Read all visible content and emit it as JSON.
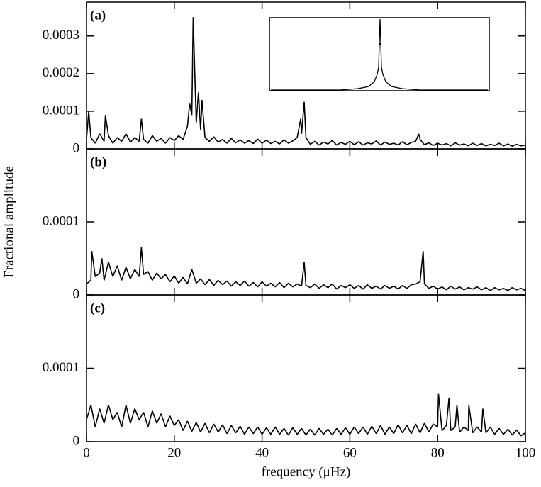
{
  "chart_data": [
    {
      "type": "line",
      "label": "(a)",
      "color": "#000000",
      "xlim": [
        0,
        100
      ],
      "ylim": [
        0,
        0.00039
      ],
      "yticks": [
        0,
        0.0001,
        0.0002,
        0.0003
      ],
      "x": [
        0,
        0.5,
        1,
        2,
        3,
        4,
        4.3,
        5,
        6,
        7,
        8,
        9,
        10,
        11,
        12,
        12.5,
        13,
        14,
        15,
        16,
        17,
        18,
        19,
        20,
        21,
        22,
        23,
        23.5,
        24,
        24.3,
        25,
        25.5,
        26,
        26.3,
        27,
        28,
        29,
        30,
        31,
        32,
        33,
        34,
        35,
        36,
        37,
        38,
        39,
        40,
        41,
        42,
        43,
        44,
        45,
        46,
        47,
        48,
        48.8,
        49,
        49.6,
        50,
        51,
        52,
        53,
        54,
        55,
        56,
        57,
        58,
        59,
        60,
        61,
        62,
        63,
        64,
        65,
        66,
        67,
        68,
        69,
        70,
        71,
        72,
        73,
        74,
        75,
        75.7,
        76,
        77,
        78,
        79,
        80,
        81,
        82,
        83,
        84,
        85,
        86,
        87,
        88,
        89,
        90,
        91,
        92,
        93,
        94,
        95,
        96,
        97,
        98,
        99,
        100
      ],
      "values": [
        2.5e-05,
        0.0001,
        3e-05,
        1.5e-05,
        4e-05,
        2e-05,
        9e-05,
        3.5e-05,
        1.5e-05,
        3e-05,
        2e-05,
        4e-05,
        1.8e-05,
        3e-05,
        2e-05,
        8e-05,
        2.5e-05,
        1.5e-05,
        3.5e-05,
        2e-05,
        2.8e-05,
        1.5e-05,
        3e-05,
        2.2e-05,
        3.5e-05,
        2.5e-05,
        6e-05,
        0.00012,
        9e-05,
        0.00035,
        7e-05,
        0.00015,
        5e-05,
        0.00013,
        3e-05,
        2e-05,
        3.2e-05,
        1.8e-05,
        2.5e-05,
        1.5e-05,
        2.8e-05,
        1.6e-05,
        2.4e-05,
        1.5e-05,
        2.2e-05,
        1.4e-05,
        2.6e-05,
        1.5e-05,
        2.3e-05,
        1.4e-05,
        2e-05,
        1.3e-05,
        2.4e-05,
        1.5e-05,
        2.1e-05,
        3e-05,
        8e-05,
        4e-05,
        0.000125,
        3e-05,
        1.2e-05,
        2e-05,
        1e-05,
        1.8e-05,
        1.3e-05,
        2.2e-05,
        1e-05,
        1.7e-05,
        1.2e-05,
        2e-05,
        1.1e-05,
        1.9e-05,
        1e-05,
        1.6e-05,
        1.3e-05,
        2.1e-05,
        1e-05,
        1.8e-05,
        1.2e-05,
        1.5e-05,
        1e-05,
        1.9e-05,
        1.1e-05,
        1.7e-05,
        2e-05,
        4e-05,
        2.5e-05,
        1.1e-05,
        1.6e-05,
        9e-06,
        1.5e-05,
        1e-05,
        1.4e-05,
        8e-06,
        1.6e-05,
        1e-05,
        1.3e-05,
        8e-06,
        1.5e-05,
        9e-06,
        1.4e-05,
        8e-06,
        1.2e-05,
        9e-06,
        1.5e-05,
        8e-06,
        1.3e-05,
        7e-06,
        1.2e-05,
        8e-06,
        1e-05
      ]
    },
    {
      "type": "line",
      "label": "(b)",
      "color": "#000000",
      "ylabel": "Fractional amplitude",
      "xlim": [
        0,
        100
      ],
      "ylim": [
        0,
        0.0002
      ],
      "yticks": [
        0,
        0.0001
      ],
      "x": [
        0,
        1,
        1.2,
        2,
        3,
        3.5,
        4,
        5,
        6,
        7,
        8,
        9,
        10,
        11,
        12,
        12.5,
        13,
        14,
        15,
        16,
        17,
        18,
        19,
        20,
        21,
        22,
        23,
        24,
        25,
        26,
        27,
        28,
        29,
        30,
        31,
        32,
        33,
        34,
        35,
        36,
        37,
        38,
        39,
        40,
        41,
        42,
        43,
        44,
        45,
        46,
        47,
        48,
        49,
        49.6,
        50,
        51,
        52,
        53,
        54,
        55,
        56,
        57,
        58,
        59,
        60,
        61,
        62,
        63,
        64,
        65,
        66,
        67,
        68,
        69,
        70,
        71,
        72,
        73,
        74,
        75,
        76,
        76.7,
        77,
        78,
        79,
        80,
        81,
        82,
        83,
        84,
        85,
        86,
        87,
        88,
        89,
        90,
        91,
        92,
        93,
        94,
        95,
        96,
        97,
        98,
        99,
        100
      ],
      "values": [
        1.5e-05,
        2e-05,
        6e-05,
        2.5e-05,
        3e-05,
        5e-05,
        2e-05,
        4.5e-05,
        2.5e-05,
        4e-05,
        2e-05,
        3.8e-05,
        2.2e-05,
        3.5e-05,
        2.5e-05,
        6.5e-05,
        2.8e-05,
        3.2e-05,
        2e-05,
        3e-05,
        2.2e-05,
        2.8e-05,
        1.8e-05,
        2.6e-05,
        1.6e-05,
        2.4e-05,
        1.5e-05,
        3.5e-05,
        1.6e-05,
        2.2e-05,
        1.4e-05,
        2.1e-05,
        1.3e-05,
        2e-05,
        1.4e-05,
        1.9e-05,
        1.2e-05,
        1.8e-05,
        1.3e-05,
        1.9e-05,
        1.2e-05,
        1.7e-05,
        1.1e-05,
        1.8e-05,
        1.2e-05,
        1.6e-05,
        1.1e-05,
        1.7e-05,
        1e-05,
        1.6e-05,
        1.1e-05,
        1.5e-05,
        1.2e-05,
        4.5e-05,
        1.3e-05,
        1e-05,
        1.5e-05,
        9e-06,
        1.4e-05,
        1e-05,
        1.5e-05,
        8e-06,
        1.3e-05,
        1e-05,
        1.4e-05,
        9e-06,
        1.3e-05,
        8e-06,
        1.4e-05,
        9e-06,
        1.2e-05,
        8e-06,
        1.3e-05,
        9e-06,
        1.2e-05,
        8e-06,
        1.3e-05,
        9e-06,
        1.4e-05,
        1.5e-05,
        1.8e-05,
        6e-05,
        1.5e-05,
        9e-06,
        1.2e-05,
        8e-06,
        1.1e-05,
        7e-06,
        1.2e-05,
        8e-06,
        1.1e-05,
        7e-06,
        1e-05,
        8e-06,
        1.1e-05,
        7e-06,
        1e-05,
        6e-06,
        1e-05,
        7e-06,
        9e-06,
        6e-06,
        1e-05,
        7e-06,
        9e-06,
        6e-06
      ]
    },
    {
      "type": "line",
      "label": "(c)",
      "color": "#000000",
      "xlabel": "frequency (μHz)",
      "xlim": [
        0,
        100
      ],
      "xticks": [
        0,
        20,
        40,
        60,
        80,
        100
      ],
      "ylim": [
        0,
        0.0002
      ],
      "yticks": [
        0,
        0.0001
      ],
      "x": [
        0,
        1,
        2,
        3,
        4,
        5,
        6,
        7,
        8,
        9,
        10,
        11,
        12,
        13,
        14,
        15,
        16,
        17,
        18,
        19,
        20,
        21,
        22,
        23,
        24,
        25,
        26,
        27,
        28,
        29,
        30,
        31,
        32,
        33,
        34,
        35,
        36,
        37,
        38,
        39,
        40,
        41,
        42,
        43,
        44,
        45,
        46,
        47,
        48,
        49,
        50,
        51,
        52,
        53,
        54,
        55,
        56,
        57,
        58,
        59,
        60,
        61,
        62,
        63,
        64,
        65,
        66,
        67,
        68,
        69,
        70,
        71,
        72,
        73,
        74,
        75,
        76,
        77,
        78,
        79,
        80,
        80.2,
        81,
        82,
        82.6,
        83,
        84,
        84.4,
        85,
        86,
        87,
        87.1,
        88,
        89,
        90,
        90.3,
        91,
        92,
        93,
        94,
        95,
        96,
        97,
        98,
        99,
        100
      ],
      "values": [
        3e-05,
        5e-05,
        2e-05,
        4.5e-05,
        2.5e-05,
        5e-05,
        3e-05,
        4e-05,
        2e-05,
        5e-05,
        2.5e-05,
        4.5e-05,
        3e-05,
        4e-05,
        2e-05,
        4.2e-05,
        2.5e-05,
        3.8e-05,
        2e-05,
        3.5e-05,
        2.2e-05,
        3e-05,
        1.5e-05,
        2.8e-05,
        1.4e-05,
        2.6e-05,
        1.3e-05,
        2.5e-05,
        1.2e-05,
        2.4e-05,
        1.3e-05,
        2.3e-05,
        1.1e-05,
        2.2e-05,
        1.2e-05,
        2.1e-05,
        1e-05,
        2e-05,
        1.1e-05,
        2e-05,
        1e-05,
        1.9e-05,
        1e-05,
        2e-05,
        1e-05,
        1.8e-05,
        9e-06,
        1.9e-05,
        1e-05,
        1.8e-05,
        9e-06,
        1.7e-05,
        9e-06,
        1.8e-05,
        1e-05,
        1.7e-05,
        9e-06,
        1.8e-05,
        1e-05,
        1.9e-05,
        1e-05,
        2e-05,
        1.1e-05,
        2e-05,
        1e-05,
        2.1e-05,
        1.1e-05,
        2.2e-05,
        1e-05,
        2e-05,
        1.1e-05,
        2.3e-05,
        1.2e-05,
        2.2e-05,
        1.1e-05,
        2.4e-05,
        1.2e-05,
        2.5e-05,
        1.3e-05,
        2.4e-05,
        2e-05,
        6.5e-05,
        1.5e-05,
        2.2e-05,
        6e-05,
        1.5e-05,
        2e-05,
        5e-05,
        1.3e-05,
        2e-05,
        1.5e-05,
        5e-05,
        1.2e-05,
        2e-05,
        1.3e-05,
        4.5e-05,
        1.2e-05,
        2e-05,
        1e-05,
        1.8e-05,
        1e-05,
        1.7e-05,
        9e-06,
        1.6e-05,
        8e-06,
        1.2e-05
      ]
    }
  ]
}
